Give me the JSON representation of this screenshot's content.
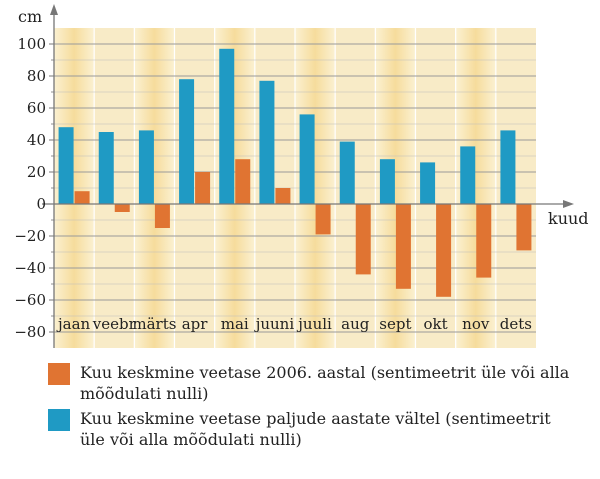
{
  "chart_data": {
    "type": "bar",
    "ylabel": "cm",
    "xlabel": "kuud",
    "ylim": [
      -85,
      108
    ],
    "yticks": [
      -80,
      -60,
      -40,
      -20,
      0,
      20,
      40,
      60,
      80,
      100
    ],
    "categories": [
      "jaan",
      "veebr",
      "märts",
      "apr",
      "mai",
      "juuni",
      "juuli",
      "aug",
      "sept",
      "okt",
      "nov",
      "dets"
    ],
    "series": [
      {
        "name": "Kuu keskmine veetase paljude aastate vältel (sentimeetrit üle või alla mõõdulati nulli)",
        "color": "#1f9ac4",
        "values": [
          48,
          45,
          46,
          78,
          97,
          77,
          56,
          39,
          28,
          26,
          36,
          46
        ]
      },
      {
        "name": "Kuu keskmine veetase 2006. aastal (sentimeetrit üle või alla mõõdulati nulli)",
        "color": "#e07432",
        "values": [
          8,
          -5,
          -15,
          20,
          28,
          10,
          -19,
          -44,
          -53,
          -58,
          -46,
          -29
        ]
      }
    ],
    "grid": true,
    "legend_position": "bottom",
    "background_band_color": "#f7e2a8"
  }
}
